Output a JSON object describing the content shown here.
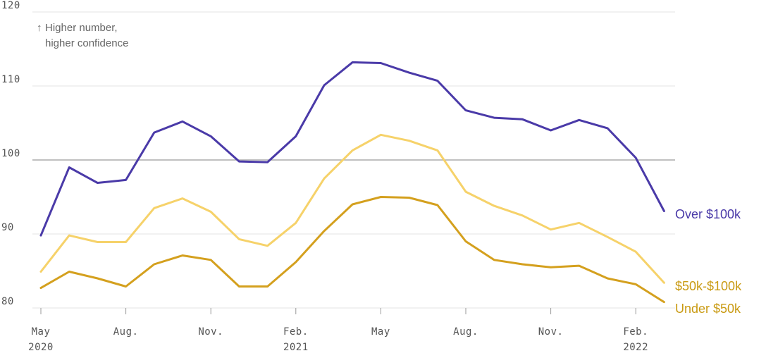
{
  "chart_data": {
    "type": "line",
    "title": "",
    "xlabel": "",
    "ylabel": "",
    "ylim": [
      80,
      120
    ],
    "yticks": [
      80,
      90,
      100,
      110,
      120
    ],
    "grid": true,
    "reference_line": 100,
    "annotation": {
      "arrow": "↑",
      "line1": "Higher number,",
      "line2": "higher confidence"
    },
    "x": [
      "2020-05",
      "2020-06",
      "2020-07",
      "2020-08",
      "2020-09",
      "2020-10",
      "2020-11",
      "2020-12",
      "2021-01",
      "2021-02",
      "2021-03",
      "2021-04",
      "2021-05",
      "2021-06",
      "2021-07",
      "2021-08",
      "2021-09",
      "2021-10",
      "2021-11",
      "2021-12",
      "2022-01",
      "2022-02",
      "2022-03"
    ],
    "x_ticks": [
      {
        "x": "2020-05",
        "line1": "May",
        "line2": "2020"
      },
      {
        "x": "2020-08",
        "line1": "Aug.",
        "line2": ""
      },
      {
        "x": "2020-11",
        "line1": "Nov.",
        "line2": ""
      },
      {
        "x": "2021-02",
        "line1": "Feb.",
        "line2": "2021"
      },
      {
        "x": "2021-05",
        "line1": "May",
        "line2": ""
      },
      {
        "x": "2021-08",
        "line1": "Aug.",
        "line2": ""
      },
      {
        "x": "2021-11",
        "line1": "Nov.",
        "line2": ""
      },
      {
        "x": "2022-02",
        "line1": "Feb.",
        "line2": "2022"
      }
    ],
    "series": [
      {
        "name": "Over $100k",
        "color": "#4a3aa8",
        "values": [
          89.8,
          99.0,
          96.9,
          97.3,
          103.7,
          105.2,
          103.2,
          99.8,
          99.7,
          103.2,
          110.1,
          113.2,
          113.1,
          111.8,
          110.7,
          106.7,
          105.7,
          105.5,
          104.0,
          105.4,
          104.3,
          100.3,
          93.1
        ]
      },
      {
        "name": "$50k-$100k",
        "color": "#f6d26a",
        "values": [
          84.9,
          89.8,
          88.9,
          88.9,
          93.5,
          94.8,
          93.0,
          89.3,
          88.4,
          91.5,
          97.5,
          101.3,
          103.4,
          102.6,
          101.3,
          95.7,
          93.8,
          92.5,
          90.6,
          91.5,
          89.6,
          87.6,
          83.4
        ]
      },
      {
        "name": "Under $50k",
        "color": "#d4a01e",
        "values": [
          82.7,
          84.9,
          84.0,
          82.9,
          85.9,
          87.1,
          86.5,
          82.9,
          82.9,
          86.2,
          90.4,
          94.0,
          95.0,
          94.9,
          93.9,
          89.0,
          86.5,
          85.9,
          85.5,
          85.7,
          84.0,
          83.2,
          80.8
        ]
      }
    ],
    "label_colors": {
      "Over $100k": "#4a3aa8",
      "$50k-$100k": "#c99a12",
      "Under $50k": "#c99a12"
    }
  }
}
